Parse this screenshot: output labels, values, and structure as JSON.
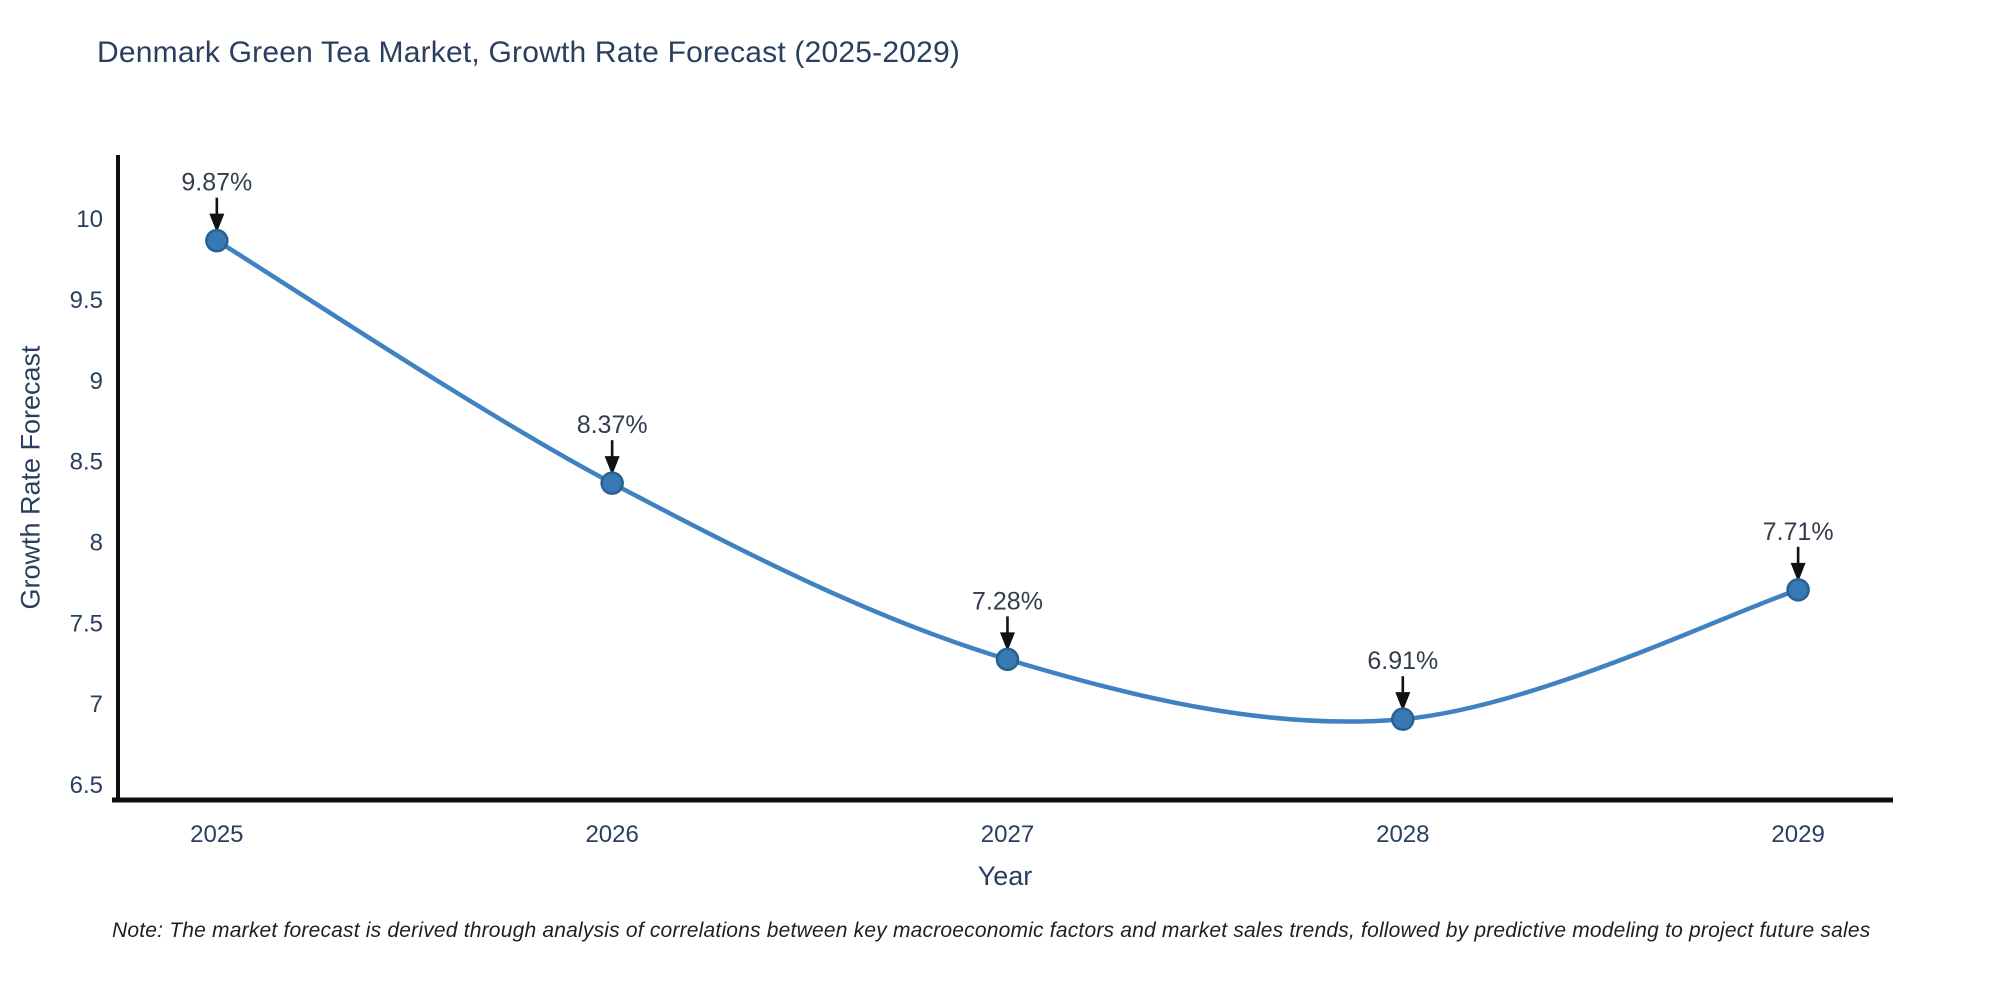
{
  "chart_data": {
    "type": "line",
    "title": "Denmark Green Tea Market, Growth Rate Forecast (2025-2029)",
    "xlabel": "Year",
    "ylabel": "Growth Rate Forecast",
    "categories": [
      2025,
      2026,
      2027,
      2028,
      2029
    ],
    "series": [
      {
        "name": "Growth Rate Forecast",
        "values": [
          9.87,
          8.37,
          7.28,
          6.91,
          7.71
        ]
      }
    ],
    "point_labels": [
      "9.87%",
      "8.37%",
      "7.28%",
      "6.91%",
      "7.71%"
    ],
    "xticks": [
      2025,
      2026,
      2027,
      2028,
      2029
    ],
    "yticks": [
      6.5,
      7,
      7.5,
      8,
      8.5,
      9,
      9.5,
      10
    ],
    "xlim": [
      2024.75,
      2029.24
    ],
    "ylim": [
      6.41,
      10.4
    ],
    "grid": false,
    "legend": "none",
    "line_shape": "spline",
    "colors": {
      "line": "#3f81c1",
      "marker_fill": "#3879b5",
      "marker_edge": "#27628f",
      "arrow": "#111111",
      "axis": "#0d0d0d",
      "text": "#2a3f5f",
      "annotation_text": "#333d4d",
      "note_text": "#1f1f1f"
    },
    "note": "Note: The market forecast is derived through analysis of correlations between key macroeconomic factors and market sales trends, followed by predictive modeling to project future sales"
  }
}
